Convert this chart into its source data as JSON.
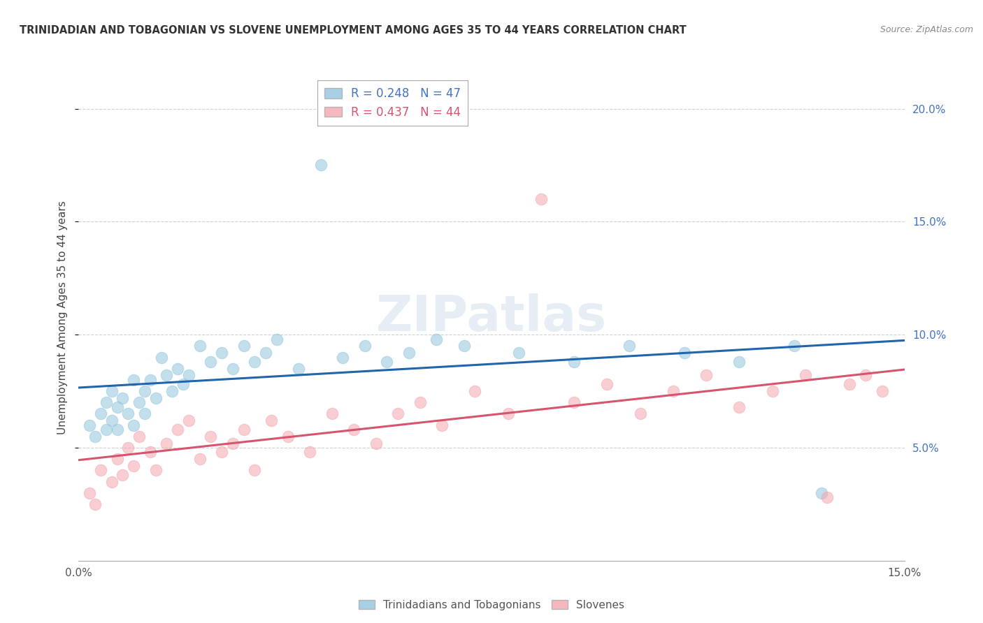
{
  "title": "TRINIDADIAN AND TOBAGONIAN VS SLOVENE UNEMPLOYMENT AMONG AGES 35 TO 44 YEARS CORRELATION CHART",
  "source": "Source: ZipAtlas.com",
  "ylabel": "Unemployment Among Ages 35 to 44 years",
  "legend_blue_label": "Trinidadians and Tobagonians",
  "legend_pink_label": "Slovenes",
  "watermark": "ZIPatlas",
  "xmin": 0.0,
  "xmax": 0.15,
  "ymin": 0.0,
  "ymax": 0.215,
  "R_blue": 0.248,
  "N_blue": 47,
  "R_pink": 0.437,
  "N_pink": 44,
  "blue_color": "#92c5de",
  "pink_color": "#f4a6b0",
  "blue_line_color": "#2166ac",
  "pink_line_color": "#d6546e",
  "blue_scatter_x": [
    0.002,
    0.003,
    0.004,
    0.005,
    0.005,
    0.006,
    0.006,
    0.007,
    0.007,
    0.008,
    0.009,
    0.01,
    0.01,
    0.011,
    0.012,
    0.012,
    0.013,
    0.014,
    0.015,
    0.016,
    0.017,
    0.018,
    0.019,
    0.02,
    0.022,
    0.024,
    0.026,
    0.028,
    0.03,
    0.032,
    0.034,
    0.036,
    0.04,
    0.044,
    0.048,
    0.052,
    0.056,
    0.06,
    0.065,
    0.07,
    0.08,
    0.09,
    0.1,
    0.11,
    0.12,
    0.13,
    0.135
  ],
  "blue_scatter_y": [
    0.06,
    0.055,
    0.065,
    0.058,
    0.07,
    0.062,
    0.075,
    0.068,
    0.058,
    0.072,
    0.065,
    0.06,
    0.08,
    0.07,
    0.075,
    0.065,
    0.08,
    0.072,
    0.09,
    0.082,
    0.075,
    0.085,
    0.078,
    0.082,
    0.095,
    0.088,
    0.092,
    0.085,
    0.095,
    0.088,
    0.092,
    0.098,
    0.085,
    0.175,
    0.09,
    0.095,
    0.088,
    0.092,
    0.098,
    0.095,
    0.092,
    0.088,
    0.095,
    0.092,
    0.088,
    0.095,
    0.03
  ],
  "pink_scatter_x": [
    0.002,
    0.003,
    0.004,
    0.006,
    0.007,
    0.008,
    0.009,
    0.01,
    0.011,
    0.013,
    0.014,
    0.016,
    0.018,
    0.02,
    0.022,
    0.024,
    0.026,
    0.028,
    0.03,
    0.032,
    0.035,
    0.038,
    0.042,
    0.046,
    0.05,
    0.054,
    0.058,
    0.062,
    0.066,
    0.072,
    0.078,
    0.084,
    0.09,
    0.096,
    0.102,
    0.108,
    0.114,
    0.12,
    0.126,
    0.132,
    0.136,
    0.14,
    0.143,
    0.146
  ],
  "pink_scatter_y": [
    0.03,
    0.025,
    0.04,
    0.035,
    0.045,
    0.038,
    0.05,
    0.042,
    0.055,
    0.048,
    0.04,
    0.052,
    0.058,
    0.062,
    0.045,
    0.055,
    0.048,
    0.052,
    0.058,
    0.04,
    0.062,
    0.055,
    0.048,
    0.065,
    0.058,
    0.052,
    0.065,
    0.07,
    0.06,
    0.075,
    0.065,
    0.16,
    0.07,
    0.078,
    0.065,
    0.075,
    0.082,
    0.068,
    0.075,
    0.082,
    0.028,
    0.078,
    0.082,
    0.075
  ]
}
